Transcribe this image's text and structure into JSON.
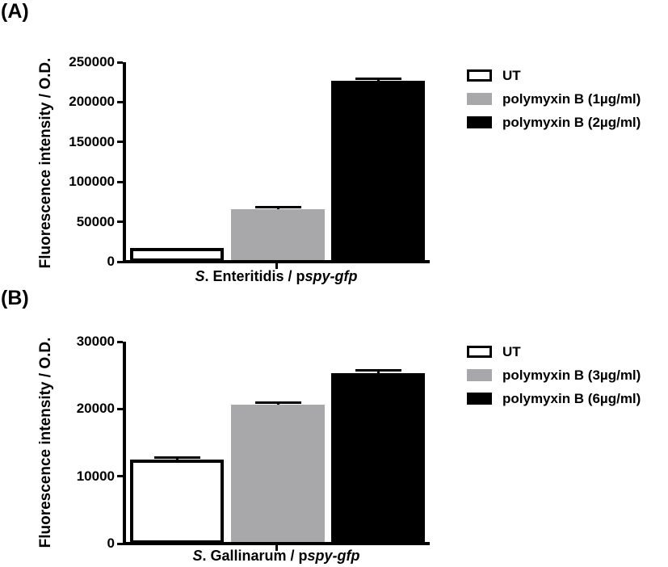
{
  "figure": {
    "background_color": "#ffffff",
    "text_color": "#000000",
    "bar_gray": "#a8a8ab",
    "bar_black": "#000000",
    "bar_white": "#ffffff"
  },
  "panels": [
    {
      "panel_label": "(A)",
      "ylabel": "Fluorescence intensity / O.D.",
      "xlabel_parts": [
        {
          "text": "S",
          "italic": true
        },
        {
          "text": ". Enteritidis / p",
          "italic": false
        },
        {
          "text": "spy-gfp",
          "italic": true
        }
      ],
      "legend": [
        {
          "label": "UT",
          "fill": "#ffffff",
          "border": "#000000"
        },
        {
          "label": "polymyxin B (1µg/ml)",
          "fill": "#a8a8ab",
          "border": "#a8a8ab"
        },
        {
          "label": "polymyxin B (2µg/ml)",
          "fill": "#000000",
          "border": "#000000"
        }
      ]
    },
    {
      "panel_label": "(B)",
      "ylabel": "Fluorescence intensity / O.D.",
      "xlabel_parts": [
        {
          "text": "S",
          "italic": true
        },
        {
          "text": ". Gallinarum / p",
          "italic": false
        },
        {
          "text": "spy-gfp",
          "italic": true
        }
      ],
      "legend": [
        {
          "label": "UT",
          "fill": "#ffffff",
          "border": "#000000"
        },
        {
          "label": "polymyxin B (3µg/ml)",
          "fill": "#a8a8ab",
          "border": "#a8a8ab"
        },
        {
          "label": "polymyxin B (6µg/ml)",
          "fill": "#000000",
          "border": "#000000"
        }
      ]
    }
  ],
  "chart_data": [
    {
      "type": "bar",
      "panel": "A",
      "title": "",
      "xlabel": "S. Enteritidis / pspy-gfp",
      "ylabel": "Fluorescence intensity / O.D.",
      "categories": [
        "UT",
        "polymyxin B (1µg/ml)",
        "polymyxin B (2µg/ml)"
      ],
      "values": [
        17000,
        66000,
        227000
      ],
      "errors": [
        0,
        2000,
        2500
      ],
      "bar_colors": [
        "#ffffff",
        "#a8a8ab",
        "#000000"
      ],
      "bar_border_colors": [
        "#000000",
        "#a8a8ab",
        "#000000"
      ],
      "ylim": [
        0,
        250000
      ],
      "yticks": [
        0,
        50000,
        100000,
        150000,
        200000,
        250000
      ],
      "grid": false,
      "legend_position": "right"
    },
    {
      "type": "bar",
      "panel": "B",
      "title": "",
      "xlabel": "S. Gallinarum / pspy-gfp",
      "ylabel": "Fluorescence intensity / O.D.",
      "categories": [
        "UT",
        "polymyxin B (3µg/ml)",
        "polymyxin B (6µg/ml)"
      ],
      "values": [
        12500,
        20700,
        25300
      ],
      "errors": [
        300,
        250,
        450
      ],
      "bar_colors": [
        "#ffffff",
        "#a8a8ab",
        "#000000"
      ],
      "bar_border_colors": [
        "#000000",
        "#a8a8ab",
        "#000000"
      ],
      "ylim": [
        0,
        30000
      ],
      "yticks": [
        0,
        10000,
        20000,
        30000
      ],
      "grid": false,
      "legend_position": "right"
    }
  ]
}
